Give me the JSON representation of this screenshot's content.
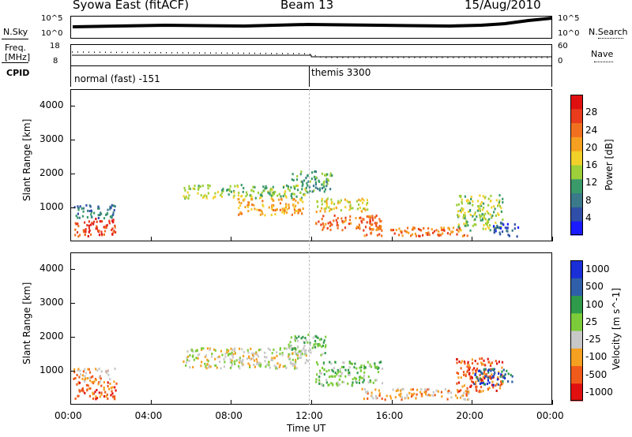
{
  "header": {
    "station": "Syowa East (fitACF)",
    "beam": "Beam 13",
    "date": "15/Aug/2010"
  },
  "noise_panel": {
    "left_label": "N.Sky",
    "right_label": "N.Search",
    "left_ticks": [
      "10^5",
      "10^0"
    ],
    "right_ticks": [
      "10^5",
      "10^0"
    ]
  },
  "freq_panel": {
    "left_label_1": "Freq.",
    "left_label_2": "[MHz]",
    "right_label": "Nave",
    "left_ticks": [
      "18",
      "8"
    ],
    "right_ticks": [
      "60",
      "0"
    ]
  },
  "cpid_panel": {
    "label": "CPID",
    "modes": [
      {
        "name": "normal (fast) -151",
        "start_hour": 0
      },
      {
        "name": "themis 3300",
        "start_hour": 12
      }
    ]
  },
  "colors": {
    "power": [
      "#1a1aff",
      "#2f4fa8",
      "#3a7a8a",
      "#3a9a6a",
      "#9ccf3a",
      "#f2d02a",
      "#f5a020",
      "#f07020",
      "#e83c1c",
      "#e01010"
    ],
    "velocity": [
      "#e01010",
      "#f05a1a",
      "#f5a020",
      "#c8c8c8",
      "#7ccc3a",
      "#2f9a4a",
      "#2f5fa8",
      "#1a2fd8"
    ]
  },
  "chart_data": [
    {
      "type": "heatmap",
      "panel": "power",
      "ylabel": "Slant Range [km]",
      "ylim": [
        0,
        4500
      ],
      "xlim": [
        0,
        24
      ],
      "y_ticks": [
        "1000",
        "2000",
        "3000",
        "4000"
      ],
      "x_ticks": [
        "00:00",
        "04:00",
        "08:00",
        "12:00",
        "16:00",
        "20:00",
        "00:00"
      ],
      "colorbar_label": "Power [dB]",
      "colorbar_ticks": [
        "4",
        "8",
        "12",
        "16",
        "20",
        "24",
        "28"
      ],
      "features": [
        {
          "t0": 0.2,
          "t1": 2.3,
          "r0": 180,
          "r1": 700,
          "level": 8
        },
        {
          "t0": 0.1,
          "t1": 2.2,
          "r0": 700,
          "r1": 1100,
          "level": 2
        },
        {
          "t0": 5.6,
          "t1": 11.8,
          "r0": 1300,
          "r1": 1700,
          "level": 4
        },
        {
          "t0": 8.3,
          "t1": 11.6,
          "r0": 800,
          "r1": 1300,
          "level": 6
        },
        {
          "t0": 11.0,
          "t1": 13.0,
          "r0": 1500,
          "r1": 2100,
          "level": 3
        },
        {
          "t0": 12.2,
          "t1": 14.8,
          "r0": 900,
          "r1": 1300,
          "level": 5
        },
        {
          "t0": 12.2,
          "t1": 15.5,
          "r0": 350,
          "r1": 800,
          "level": 7
        },
        {
          "t0": 14.5,
          "t1": 19.8,
          "r0": 180,
          "r1": 450,
          "level": 7
        },
        {
          "t0": 19.2,
          "t1": 21.5,
          "r0": 350,
          "r1": 1400,
          "level": 4
        },
        {
          "t0": 21.0,
          "t1": 22.3,
          "r0": 180,
          "r1": 600,
          "level": 1
        }
      ]
    },
    {
      "type": "heatmap",
      "panel": "velocity",
      "xlabel": "Time UT",
      "ylabel": "Slant Range [km]",
      "ylim": [
        0,
        4500
      ],
      "xlim": [
        0,
        24
      ],
      "y_ticks": [
        "1000",
        "2000",
        "3000",
        "4000"
      ],
      "x_ticks": [
        "00:00",
        "04:00",
        "08:00",
        "12:00",
        "16:00",
        "20:00",
        "00:00"
      ],
      "colorbar_label": "Velocity [m s^-1]",
      "colorbar_ticks": [
        "1000",
        "500",
        "100",
        "25",
        "-25",
        "-100",
        "-500",
        "-1000"
      ],
      "features": [
        {
          "t0": 0.2,
          "t1": 2.3,
          "r0": 180,
          "r1": 700,
          "level": 1
        },
        {
          "t0": 0.1,
          "t1": 2.2,
          "r0": 700,
          "r1": 1100,
          "level": 2
        },
        {
          "t0": 5.6,
          "t1": 11.8,
          "r0": 1100,
          "r1": 1700,
          "level": 3
        },
        {
          "t0": 10.8,
          "t1": 12.8,
          "r0": 1500,
          "r1": 2100,
          "level": 4
        },
        {
          "t0": 12.2,
          "t1": 15.5,
          "r0": 600,
          "r1": 1300,
          "level": 4
        },
        {
          "t0": 14.5,
          "t1": 19.8,
          "r0": 180,
          "r1": 500,
          "level": 2
        },
        {
          "t0": 19.2,
          "t1": 21.5,
          "r0": 400,
          "r1": 1400,
          "level": 1
        },
        {
          "t0": 20.0,
          "t1": 22.0,
          "r0": 600,
          "r1": 1100,
          "level": 6
        }
      ]
    }
  ]
}
